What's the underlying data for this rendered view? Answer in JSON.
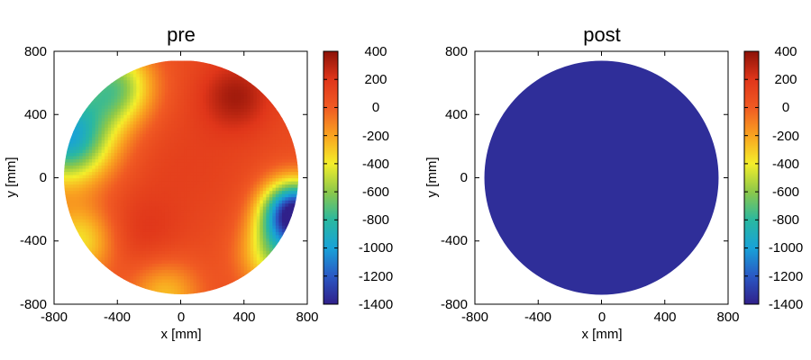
{
  "colormap": {
    "name": "jet-like",
    "stops": [
      "#30208a",
      "#2a58c4",
      "#18a2d8",
      "#2ab8a0",
      "#8cc84a",
      "#f4ee2a",
      "#f9a320",
      "#f05a23",
      "#e0361a",
      "#8c1208"
    ]
  },
  "chart_data": [
    {
      "type": "heatmap",
      "title": "pre",
      "xlabel": "x [mm]",
      "ylabel": "y [mm]",
      "xlim": [
        -800,
        800
      ],
      "ylim": [
        -800,
        800
      ],
      "x_ticks": [
        "-800",
        "-400",
        "0",
        "400",
        "800"
      ],
      "y_ticks": [
        "800",
        "400",
        "0",
        "-400",
        "-800"
      ],
      "clim": [
        -1400,
        400
      ],
      "colorbar_ticks": [
        "400",
        "200",
        "0",
        "-200",
        "-400",
        "-600",
        "-800",
        "-1000",
        "-1200",
        "-1400"
      ],
      "aperture_radius": 740,
      "field": {
        "baseline": 80,
        "bumps": [
          {
            "x": 350,
            "y": 520,
            "amp": 260,
            "sigma": 160
          },
          {
            "x": -250,
            "y": -350,
            "amp": 120,
            "sigma": 180
          },
          {
            "x": 50,
            "y": 80,
            "amp": 60,
            "sigma": 250
          }
        ],
        "edge_drop": [
          {
            "x": -720,
            "y": 260,
            "amp": -1050,
            "sigma": 200
          },
          {
            "x": -420,
            "y": 580,
            "amp": -700,
            "sigma": 170
          },
          {
            "x": 720,
            "y": -220,
            "amp": -1500,
            "sigma": 140
          },
          {
            "x": 620,
            "y": -480,
            "amp": -600,
            "sigma": 160
          },
          {
            "x": -100,
            "y": -740,
            "amp": -350,
            "sigma": 160
          },
          {
            "x": -640,
            "y": -400,
            "amp": -450,
            "sigma": 160
          }
        ]
      }
    },
    {
      "type": "heatmap",
      "title": "post",
      "xlabel": "x [mm]",
      "ylabel": "y [mm]",
      "xlim": [
        -800,
        800
      ],
      "ylim": [
        -800,
        800
      ],
      "x_ticks": [
        "-800",
        "-400",
        "0",
        "400",
        "800"
      ],
      "y_ticks": [
        "800",
        "400",
        "0",
        "-400",
        "-800"
      ],
      "clim": [
        -1400,
        400
      ],
      "colorbar_ticks": [
        "400",
        "200",
        "0",
        "-200",
        "-400",
        "-600",
        "-800",
        "-1000",
        "-1200",
        "-1400"
      ],
      "aperture_radius": 740,
      "uniform_value": -1350
    }
  ]
}
